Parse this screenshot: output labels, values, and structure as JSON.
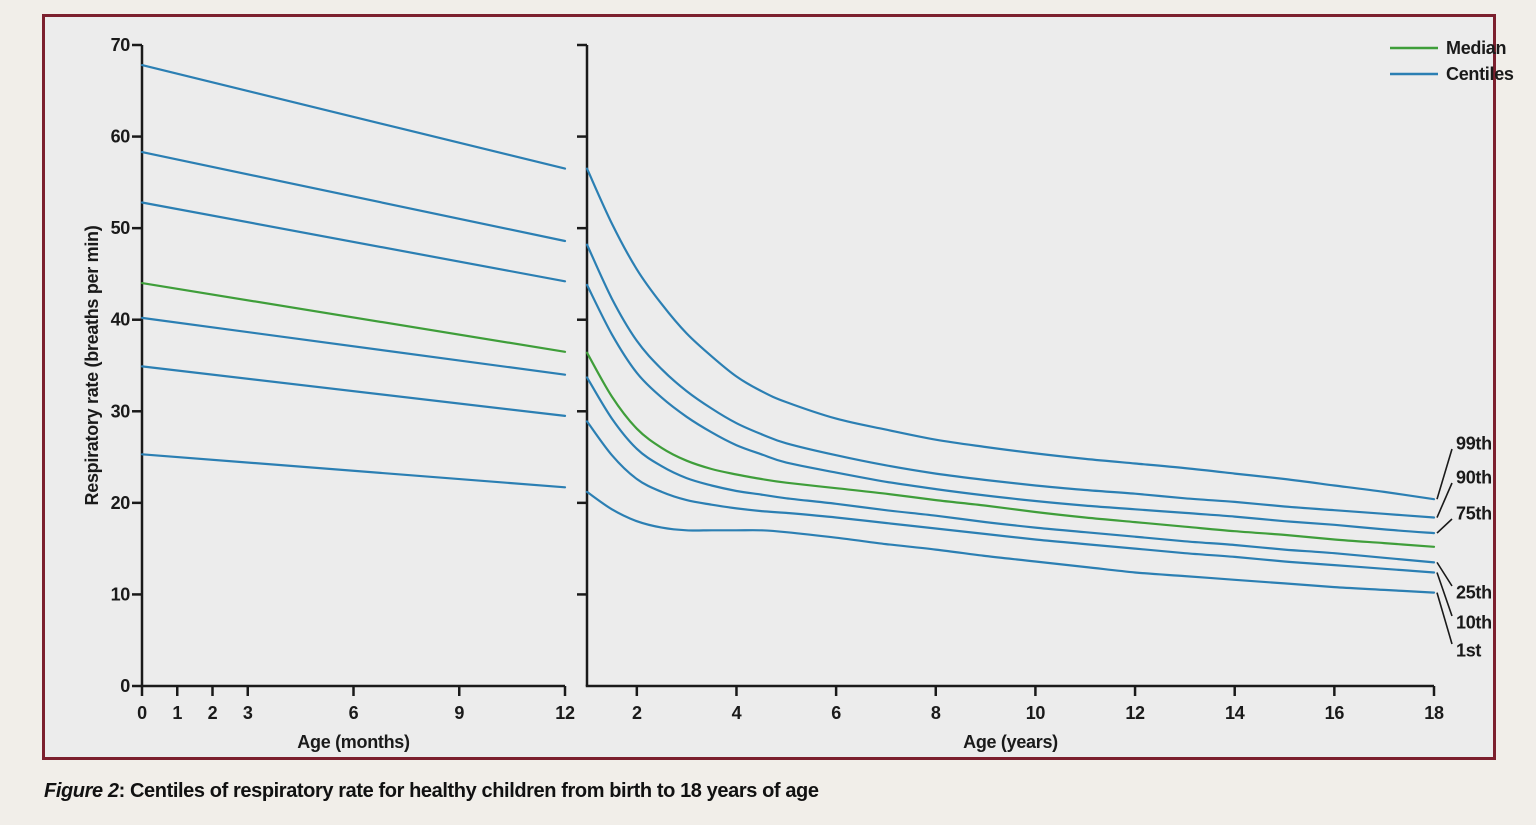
{
  "figure_caption": {
    "prefix": "Figure 2",
    "rest": ": Centiles of respiratory rate for healthy children from birth to 18 years of age"
  },
  "legend": {
    "items": [
      {
        "label": "Median",
        "color_key": "median"
      },
      {
        "label": "Centiles",
        "color_key": "centiles"
      }
    ]
  },
  "colors": {
    "median": "#3f9e3a",
    "centiles": "#2b7fb3",
    "axis": "#1a1a1a",
    "leader": "#1a1a1a",
    "border_maroon": "#7c202e",
    "plot_bg": "#ececec",
    "page_bg": "#f1eee9"
  },
  "chart_data": [
    {
      "type": "line",
      "panel": "left",
      "title": "",
      "xlabel": "Age (months)",
      "ylabel": "Respiratory rate (breaths per min)",
      "xlim": [
        0,
        12
      ],
      "ylim": [
        0,
        70
      ],
      "xticks": [
        0,
        1,
        2,
        3,
        6,
        9,
        12
      ],
      "yticks": [
        0,
        10,
        20,
        30,
        40,
        50,
        60,
        70
      ],
      "ytick_labels_visible": true,
      "grid": false,
      "series": [
        {
          "name": "99th",
          "role": "centiles",
          "x": [
            0,
            12
          ],
          "values": [
            67.8,
            56.5
          ]
        },
        {
          "name": "90th",
          "role": "centiles",
          "x": [
            0,
            12
          ],
          "values": [
            58.3,
            48.6
          ]
        },
        {
          "name": "75th",
          "role": "centiles",
          "x": [
            0,
            12
          ],
          "values": [
            52.8,
            44.2
          ]
        },
        {
          "name": "Median",
          "role": "median",
          "x": [
            0,
            12
          ],
          "values": [
            44.0,
            36.5
          ]
        },
        {
          "name": "25th",
          "role": "centiles",
          "x": [
            0,
            12
          ],
          "values": [
            40.2,
            34.0
          ]
        },
        {
          "name": "10th",
          "role": "centiles",
          "x": [
            0,
            12
          ],
          "values": [
            34.9,
            29.5
          ]
        },
        {
          "name": "1st",
          "role": "centiles",
          "x": [
            0,
            12
          ],
          "values": [
            25.3,
            21.7
          ]
        }
      ]
    },
    {
      "type": "line",
      "panel": "right",
      "title": "",
      "xlabel": "Age (years)",
      "ylabel": "",
      "xlim": [
        1,
        18
      ],
      "ylim": [
        0,
        70
      ],
      "xticks": [
        2,
        4,
        6,
        8,
        10,
        12,
        14,
        16,
        18
      ],
      "yticks": [
        10,
        20,
        30,
        40,
        50,
        60,
        70
      ],
      "ytick_labels_visible": false,
      "grid": false,
      "x": [
        1,
        1.5,
        2,
        2.5,
        3,
        3.5,
        4,
        4.5,
        5,
        6,
        7,
        8,
        9,
        10,
        11,
        12,
        13,
        14,
        15,
        16,
        17,
        18
      ],
      "series": [
        {
          "name": "99th",
          "role": "centiles",
          "values": [
            56.5,
            50.5,
            45.5,
            41.7,
            38.5,
            36.0,
            33.8,
            32.2,
            31.0,
            29.2,
            28.0,
            26.9,
            26.1,
            25.4,
            24.8,
            24.3,
            23.8,
            23.2,
            22.6,
            21.9,
            21.2,
            20.4
          ]
        },
        {
          "name": "90th",
          "role": "centiles",
          "values": [
            48.2,
            42.3,
            37.7,
            34.6,
            32.2,
            30.3,
            28.7,
            27.5,
            26.5,
            25.2,
            24.1,
            23.2,
            22.5,
            21.9,
            21.4,
            21.0,
            20.5,
            20.1,
            19.6,
            19.2,
            18.8,
            18.4
          ]
        },
        {
          "name": "75th",
          "role": "centiles",
          "values": [
            43.8,
            38.4,
            34.2,
            31.5,
            29.4,
            27.7,
            26.3,
            25.3,
            24.4,
            23.3,
            22.3,
            21.5,
            20.8,
            20.2,
            19.7,
            19.3,
            18.9,
            18.5,
            18.0,
            17.6,
            17.1,
            16.7
          ]
        },
        {
          "name": "Median",
          "role": "median",
          "values": [
            36.4,
            31.6,
            28.1,
            26.0,
            24.6,
            23.7,
            23.1,
            22.6,
            22.2,
            21.6,
            21.0,
            20.3,
            19.7,
            19.0,
            18.4,
            17.9,
            17.4,
            16.9,
            16.5,
            16.0,
            15.6,
            15.2
          ]
        },
        {
          "name": "25th",
          "role": "centiles",
          "values": [
            33.7,
            29.2,
            25.9,
            24.0,
            22.7,
            21.9,
            21.3,
            20.9,
            20.5,
            19.9,
            19.2,
            18.6,
            17.9,
            17.3,
            16.8,
            16.3,
            15.8,
            15.4,
            14.9,
            14.5,
            14.0,
            13.5
          ]
        },
        {
          "name": "10th",
          "role": "centiles",
          "values": [
            28.9,
            25.2,
            22.6,
            21.2,
            20.3,
            19.8,
            19.4,
            19.1,
            18.9,
            18.4,
            17.8,
            17.2,
            16.6,
            16.0,
            15.5,
            15.0,
            14.5,
            14.1,
            13.6,
            13.2,
            12.8,
            12.4
          ]
        },
        {
          "name": "1st",
          "role": "centiles",
          "values": [
            21.2,
            19.3,
            18.0,
            17.3,
            17.0,
            17.0,
            17.0,
            17.0,
            16.8,
            16.2,
            15.5,
            14.9,
            14.2,
            13.6,
            13.0,
            12.4,
            12.0,
            11.6,
            11.2,
            10.8,
            10.5,
            10.2
          ]
        }
      ],
      "end_labels": [
        "99th",
        "90th",
        "75th",
        "25th",
        "10th",
        "1st"
      ]
    }
  ]
}
